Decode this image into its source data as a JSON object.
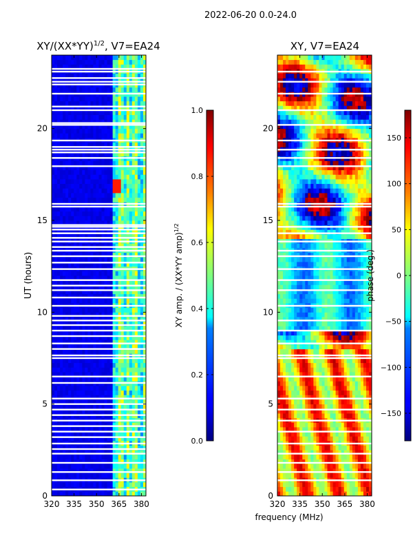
{
  "figure": {
    "suptitle": "2022-06-20 0.0-24.0",
    "xlabel": "frequency (MHz)"
  },
  "chart_data": [
    {
      "type": "heatmap",
      "title_base": "XY/(XX*YY)",
      "title_sup": "1/2",
      "title_suffix": ", V7=EA24",
      "ylabel": "UT (hours)",
      "xlim": [
        320,
        383
      ],
      "ylim": [
        0,
        24
      ],
      "xticks": [
        "320",
        "335",
        "350",
        "365",
        "380"
      ],
      "xtick_values": [
        320,
        335,
        350,
        365,
        380
      ],
      "yticks": [
        "0",
        "5",
        "10",
        "15",
        "20"
      ],
      "ytick_values": [
        0,
        5,
        10,
        15,
        20
      ],
      "flagged_hours": [
        0.35,
        0.85,
        1.3,
        1.8,
        2.3,
        2.55,
        2.85,
        3.2,
        3.5,
        3.8,
        4.1,
        4.4,
        4.7,
        5.0,
        5.3,
        6.15,
        6.5,
        7.5,
        7.65,
        8.0,
        8.3,
        8.7,
        9.0,
        9.3,
        9.55,
        9.8,
        10.35,
        10.8,
        11.2,
        11.45,
        11.75,
        12.35,
        12.7,
        13.05,
        13.35,
        13.55,
        13.85,
        14.05,
        14.3,
        14.5,
        14.65,
        14.75,
        15.75,
        15.9,
        17.95,
        18.4,
        18.7,
        18.85,
        19.0,
        19.35,
        20.2,
        20.3,
        21.0,
        21.2,
        21.9,
        22.4,
        22.55,
        22.75,
        23.1,
        23.25
      ],
      "colorbar": {
        "label_base": "XY amp. / (XX*YY amp)",
        "label_sup": "1/2",
        "ticks": [
          "0.0",
          "0.2",
          "0.4",
          "0.6",
          "0.8",
          "1.0"
        ],
        "tick_values": [
          0,
          0.2,
          0.4,
          0.6,
          0.8,
          1.0
        ],
        "range": [
          0,
          1
        ]
      }
    },
    {
      "type": "heatmap",
      "title": "XY, V7=EA24",
      "xlim": [
        320,
        383
      ],
      "ylim": [
        0,
        24
      ],
      "xticks": [
        "320",
        "335",
        "350",
        "365",
        "380"
      ],
      "xtick_values": [
        320,
        335,
        350,
        365,
        380
      ],
      "yticks": [
        "0",
        "5",
        "10",
        "15",
        "20"
      ],
      "ytick_values": [
        0,
        5,
        10,
        15,
        20
      ],
      "flagged_hours": [
        0.85,
        1.3,
        1.8,
        2.3,
        2.85,
        3.5,
        4.1,
        4.7,
        5.3,
        6.5,
        7.5,
        7.65,
        8.3,
        9.0,
        9.55,
        10.35,
        11.2,
        11.75,
        12.35,
        13.05,
        13.35,
        13.85,
        14.3,
        14.65,
        15.75,
        15.9,
        17.95,
        18.4,
        18.85,
        19.35,
        20.2,
        21.0,
        21.9,
        22.55,
        23.1
      ],
      "colorbar": {
        "label": "phase (deg.)",
        "ticks": [
          "−150",
          "−100",
          "−50",
          "0",
          "50",
          "100",
          "150"
        ],
        "tick_values": [
          -150,
          -100,
          -50,
          0,
          50,
          100,
          150
        ],
        "range": [
          -180,
          180
        ]
      }
    }
  ]
}
